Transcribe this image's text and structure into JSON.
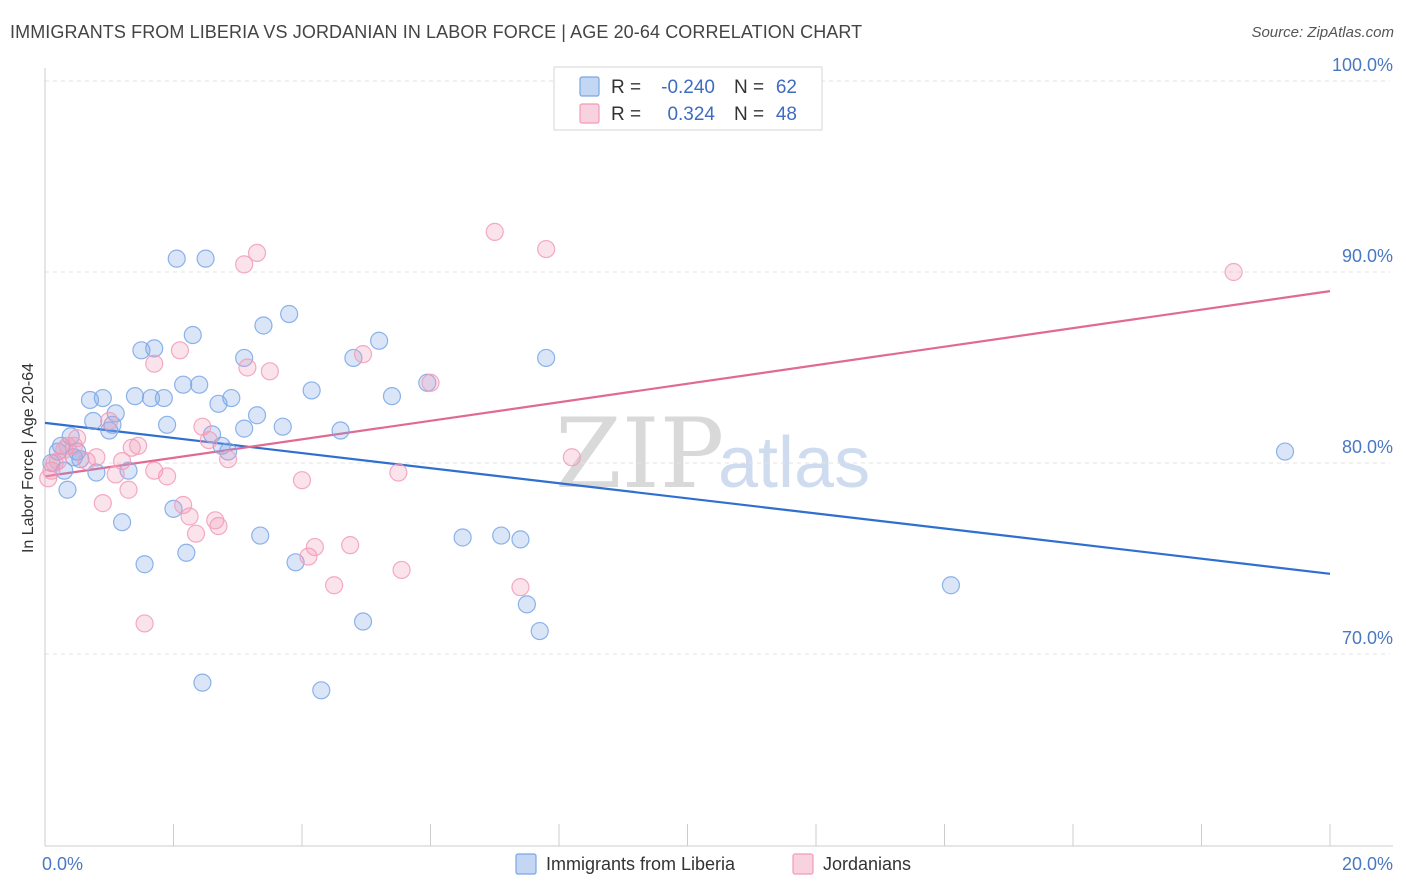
{
  "header": {
    "title": "IMMIGRANTS FROM LIBERIA VS JORDANIAN IN LABOR FORCE | AGE 20-64 CORRELATION CHART",
    "source": "Source: ZipAtlas.com"
  },
  "watermark": {
    "part1": "ZIP",
    "part2": "atlas"
  },
  "legend": {
    "rows": [
      {
        "r_label": "R =",
        "r_value": "-0.240",
        "n_label": "N =",
        "n_value": "62",
        "color": "#7aa6e6"
      },
      {
        "r_label": "R =",
        "r_value": "0.324",
        "n_label": "N =",
        "n_value": "48",
        "color": "#f29bb8"
      }
    ]
  },
  "bottom_legend": {
    "items": [
      {
        "label": "Immigrants from Liberia",
        "color": "#7aa6e6"
      },
      {
        "label": "Jordanians",
        "color": "#f29bb8"
      }
    ]
  },
  "chart_data": {
    "type": "scatter",
    "title": "IMMIGRANTS FROM LIBERIA VS JORDANIAN IN LABOR FORCE | AGE 20-64 CORRELATION CHART",
    "xlabel": "",
    "ylabel": "In Labor Force | Age 20-64",
    "xlim": [
      0,
      20
    ],
    "ylim": [
      62,
      101
    ],
    "x_tick_labels": [
      {
        "value": 0,
        "label": "0.0%"
      },
      {
        "value": 20,
        "label": "20.0%"
      }
    ],
    "y_tick_labels": [
      {
        "value": 70,
        "label": "70.0%"
      },
      {
        "value": 80,
        "label": "80.0%"
      },
      {
        "value": 90,
        "label": "90.0%"
      },
      {
        "value": 100,
        "label": "100.0%"
      }
    ],
    "grid": true,
    "legend_position": "top-center",
    "series": [
      {
        "name": "Immigrants from Liberia",
        "color": "#7aa6e6",
        "trend": {
          "x": [
            0,
            20
          ],
          "y": [
            82.1,
            74.2
          ]
        },
        "points": [
          [
            0.1,
            80.0
          ],
          [
            0.2,
            80.6
          ],
          [
            0.25,
            80.9
          ],
          [
            0.3,
            79.6
          ],
          [
            0.35,
            78.6
          ],
          [
            0.4,
            81.4
          ],
          [
            0.5,
            80.6
          ],
          [
            0.55,
            80.2
          ],
          [
            0.7,
            83.3
          ],
          [
            0.75,
            82.2
          ],
          [
            0.8,
            79.5
          ],
          [
            0.9,
            83.4
          ],
          [
            1.0,
            81.7
          ],
          [
            1.05,
            82.0
          ],
          [
            1.1,
            82.6
          ],
          [
            1.2,
            76.9
          ],
          [
            1.3,
            79.6
          ],
          [
            1.4,
            83.5
          ],
          [
            1.5,
            85.9
          ],
          [
            1.55,
            74.7
          ],
          [
            1.65,
            83.4
          ],
          [
            1.7,
            86.0
          ],
          [
            1.85,
            83.4
          ],
          [
            1.9,
            82.0
          ],
          [
            2.0,
            77.6
          ],
          [
            2.05,
            90.7
          ],
          [
            2.15,
            84.1
          ],
          [
            2.2,
            75.3
          ],
          [
            2.3,
            86.7
          ],
          [
            2.4,
            84.1
          ],
          [
            2.45,
            68.5
          ],
          [
            2.5,
            90.7
          ],
          [
            2.6,
            81.5
          ],
          [
            2.7,
            83.1
          ],
          [
            2.75,
            80.9
          ],
          [
            2.85,
            80.6
          ],
          [
            2.9,
            83.4
          ],
          [
            3.1,
            81.8
          ],
          [
            3.1,
            85.5
          ],
          [
            3.3,
            82.5
          ],
          [
            3.35,
            76.2
          ],
          [
            3.4,
            87.2
          ],
          [
            3.7,
            81.9
          ],
          [
            3.8,
            87.8
          ],
          [
            3.9,
            74.8
          ],
          [
            4.15,
            83.8
          ],
          [
            4.3,
            68.1
          ],
          [
            4.6,
            81.7
          ],
          [
            4.8,
            85.5
          ],
          [
            4.95,
            71.7
          ],
          [
            5.2,
            86.4
          ],
          [
            5.4,
            83.5
          ],
          [
            5.95,
            84.2
          ],
          [
            6.5,
            76.1
          ],
          [
            7.1,
            76.2
          ],
          [
            7.4,
            76.0
          ],
          [
            7.5,
            72.6
          ],
          [
            7.7,
            71.2
          ],
          [
            7.8,
            85.5
          ],
          [
            14.1,
            73.6
          ],
          [
            19.3,
            80.6
          ],
          [
            0.45,
            80.3
          ]
        ]
      },
      {
        "name": "Jordanians",
        "color": "#f29bb8",
        "trend": {
          "x": [
            0,
            20
          ],
          "y": [
            79.3,
            89.0
          ]
        },
        "points": [
          [
            0.05,
            79.2
          ],
          [
            0.1,
            79.6
          ],
          [
            0.15,
            80.0
          ],
          [
            0.3,
            80.7
          ],
          [
            0.45,
            80.9
          ],
          [
            0.5,
            81.3
          ],
          [
            0.65,
            80.1
          ],
          [
            0.8,
            80.3
          ],
          [
            0.9,
            77.9
          ],
          [
            1.0,
            82.2
          ],
          [
            1.1,
            79.4
          ],
          [
            1.2,
            80.1
          ],
          [
            1.3,
            78.6
          ],
          [
            1.35,
            80.8
          ],
          [
            1.45,
            80.9
          ],
          [
            1.55,
            71.6
          ],
          [
            1.7,
            85.2
          ],
          [
            1.7,
            79.6
          ],
          [
            1.9,
            79.3
          ],
          [
            2.1,
            85.9
          ],
          [
            2.15,
            77.8
          ],
          [
            2.25,
            77.2
          ],
          [
            2.35,
            76.3
          ],
          [
            2.45,
            81.9
          ],
          [
            2.55,
            81.2
          ],
          [
            2.65,
            77.0
          ],
          [
            2.7,
            76.7
          ],
          [
            2.85,
            80.2
          ],
          [
            3.1,
            90.4
          ],
          [
            3.15,
            85.0
          ],
          [
            3.3,
            91.0
          ],
          [
            3.5,
            84.8
          ],
          [
            4.0,
            79.1
          ],
          [
            4.1,
            75.1
          ],
          [
            4.2,
            75.6
          ],
          [
            4.5,
            73.6
          ],
          [
            4.75,
            75.7
          ],
          [
            4.95,
            85.7
          ],
          [
            5.5,
            79.5
          ],
          [
            5.55,
            74.4
          ],
          [
            6.0,
            84.2
          ],
          [
            7.0,
            92.1
          ],
          [
            7.4,
            73.5
          ],
          [
            7.8,
            91.2
          ],
          [
            8.2,
            80.3
          ],
          [
            18.5,
            90.0
          ],
          [
            0.2,
            80.1
          ],
          [
            0.35,
            80.9
          ]
        ]
      }
    ]
  }
}
